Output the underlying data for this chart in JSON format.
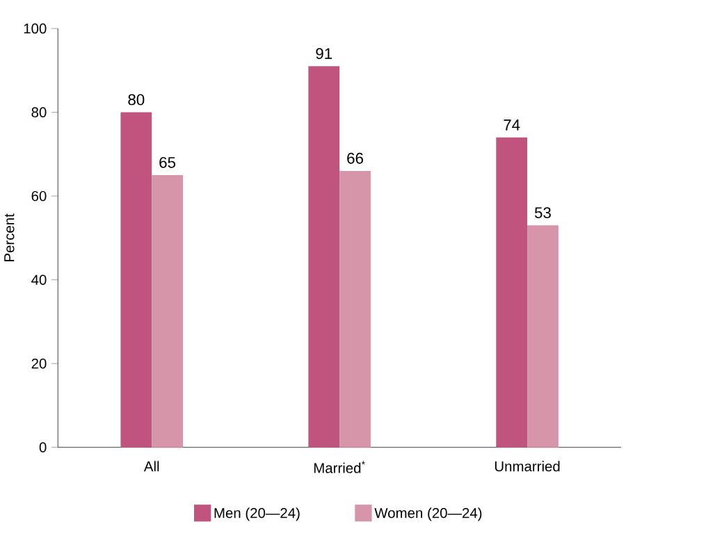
{
  "chart_data": {
    "type": "bar",
    "ylabel": "Percent",
    "categories": [
      "All",
      "Married$^{*}$",
      "Unmarried"
    ],
    "series": [
      {
        "name": "Men (20—24)",
        "color": "#c0547f",
        "values": [
          80,
          91,
          74
        ]
      },
      {
        "name": "Women (20—24)",
        "color": "#d695a8",
        "values": [
          65,
          66,
          53
        ]
      }
    ],
    "ylim": [
      0,
      100
    ],
    "yticks": [
      0,
      20,
      40,
      60,
      80,
      100
    ],
    "data_labels": true,
    "legend": "bottom"
  }
}
